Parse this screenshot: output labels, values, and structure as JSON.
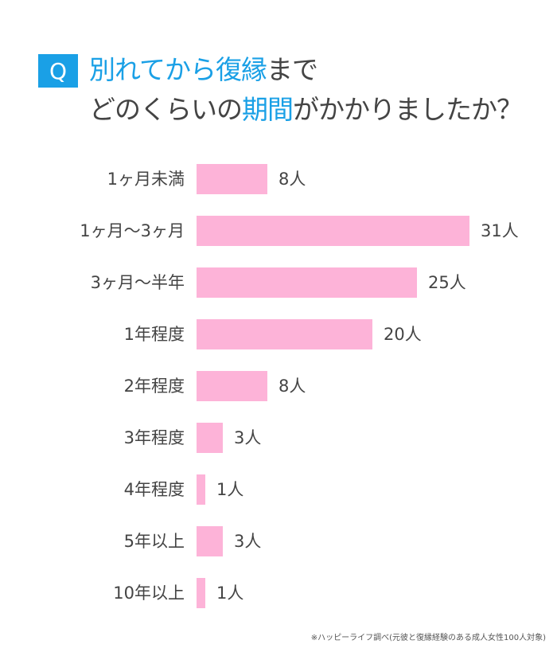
{
  "title": {
    "q_badge": "Q",
    "line1_blue": "別れてから復縁",
    "line1_dark": "まで",
    "line2_a": "どのくらいの",
    "line2_blue": "期間",
    "line2_b": "がかかりましたか？"
  },
  "colors": {
    "accent": "#1aa0e6",
    "bar": "#fdb3d8",
    "text": "#444444"
  },
  "footnote": "※ハッピーライフ調べ(元彼と復縁経験のある成人女性100人対象)",
  "unit": "人",
  "chart_data": {
    "type": "bar",
    "orientation": "horizontal",
    "title": "別れてから復縁までどのくらいの期間がかかりましたか？",
    "categories": [
      "1ヶ月未満",
      "1ヶ月〜3ヶ月",
      "3ヶ月〜半年",
      "1年程度",
      "2年程度",
      "3年程度",
      "4年程度",
      "5年以上",
      "10年以上"
    ],
    "values": [
      8,
      31,
      25,
      20,
      8,
      3,
      1,
      3,
      1
    ],
    "value_labels": [
      "8人",
      "31人",
      "25人",
      "20人",
      "8人",
      "3人",
      "1人",
      "3人",
      "1人"
    ],
    "xlabel": "",
    "ylabel": "",
    "grid": false,
    "legend": false
  }
}
